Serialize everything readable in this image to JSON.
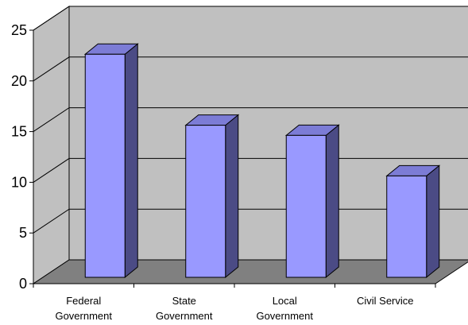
{
  "chart_data": {
    "type": "bar",
    "title": "",
    "xlabel": "",
    "ylabel": "",
    "categories": [
      [
        "Federal",
        "Government"
      ],
      [
        "State",
        "Government"
      ],
      [
        "Local",
        "Government"
      ],
      [
        "Civil Service"
      ]
    ],
    "values": [
      22,
      15,
      14,
      10
    ],
    "ylim": [
      0,
      25
    ],
    "yticks": [
      "0",
      "5",
      "10",
      "15",
      "20",
      "25"
    ],
    "grid": true,
    "legend": "none",
    "colors": {
      "bar_front": "#9999ff",
      "bar_side": "#4b4b85",
      "bar_top": "#7c7cd6",
      "back_wall": "#c0c0c0",
      "side_wall": "#c0c0c0",
      "floor": "#808080",
      "gridline": "#000000"
    }
  }
}
